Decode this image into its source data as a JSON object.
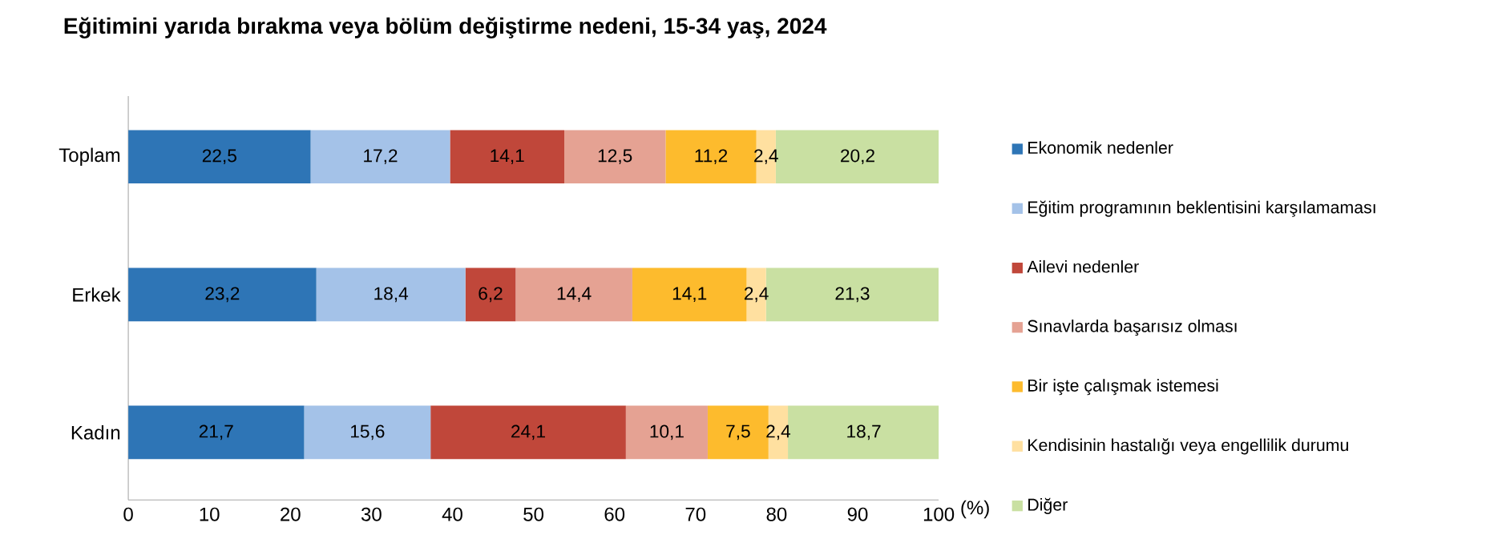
{
  "chart_data": {
    "type": "bar",
    "orientation": "horizontal",
    "stacked": true,
    "title": "Eğitimini yarıda bırakma veya bölüm değiştirme nedeni, 15-34 yaş, 2024",
    "xlabel": "(%)",
    "categories": [
      "Toplam",
      "Erkek",
      "Kadın"
    ],
    "xlim": [
      0,
      100
    ],
    "xticks": [
      0,
      10,
      20,
      30,
      40,
      50,
      60,
      70,
      80,
      90,
      100
    ],
    "legend": "right",
    "grid": false,
    "series": [
      {
        "name": "Ekonomik nedenler",
        "color": "#2e75b6",
        "values": [
          22.5,
          23.2,
          21.7
        ],
        "value_labels": [
          "22,5",
          "23,2",
          "21,7"
        ]
      },
      {
        "name": "Eğitim programının beklentisini karşılamaması",
        "color": "#a4c2e8",
        "values": [
          17.2,
          18.4,
          15.6
        ],
        "value_labels": [
          "17,2",
          "18,4",
          "15,6"
        ]
      },
      {
        "name": "Ailevi nedenler",
        "color": "#c0473a",
        "values": [
          14.1,
          6.2,
          24.1
        ],
        "value_labels": [
          "14,1",
          "6,2",
          "24,1"
        ]
      },
      {
        "name": "Sınavlarda başarısız olması",
        "color": "#e5a293",
        "values": [
          12.5,
          14.4,
          10.1
        ],
        "value_labels": [
          "12,5",
          "14,4",
          "10,1"
        ]
      },
      {
        "name": "Bir işte çalışmak istemesi",
        "color": "#fdbb2d",
        "values": [
          11.2,
          14.1,
          7.5
        ],
        "value_labels": [
          "11,2",
          "14,1",
          "7,5"
        ]
      },
      {
        "name": "Kendisinin hastalığı veya engellilik durumu",
        "color": "#ffe0a0",
        "values": [
          2.4,
          2.4,
          2.4
        ],
        "value_labels": [
          "2,4",
          "2,4",
          "2,4"
        ]
      },
      {
        "name": "Diğer",
        "color": "#c9e0a2",
        "values": [
          20.2,
          21.3,
          18.7
        ],
        "value_labels": [
          "20,2",
          "21,3",
          "18,7"
        ]
      }
    ]
  }
}
